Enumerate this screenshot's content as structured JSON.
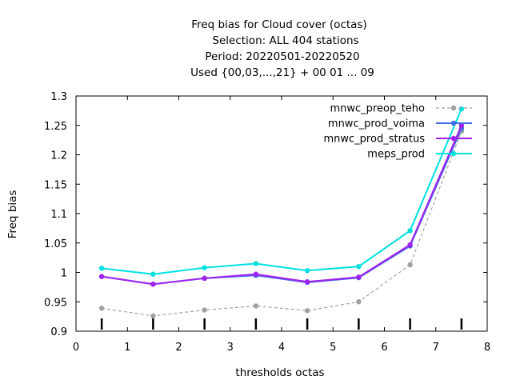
{
  "chart_data": {
    "type": "line",
    "title_lines": [
      "Freq bias  for Cloud cover (octas)",
      "Selection: ALL    404 stations",
      "Period: 20220501-20220520",
      "Used {00,03,...,21} + 00 01 ... 09"
    ],
    "xlabel": "thresholds octas",
    "ylabel": "Freq bias",
    "xlim": [
      0,
      8
    ],
    "ylim": [
      0.9,
      1.3
    ],
    "x_ticks": [
      "0",
      "1",
      "2",
      "3",
      "4",
      "5",
      "6",
      "7",
      "8"
    ],
    "y_ticks": [
      "0.9",
      "0.95",
      "1",
      "1.05",
      "1.1",
      "1.15",
      "1.2",
      "1.25",
      "1.3"
    ],
    "x": [
      0.5,
      1.5,
      2.5,
      3.5,
      4.5,
      5.5,
      6.5,
      7.5
    ],
    "series": [
      {
        "name": "mnwc_preop_teho",
        "color": "#a0a0a0",
        "dashed": true,
        "values": [
          0.939,
          0.926,
          0.936,
          0.943,
          0.935,
          0.95,
          1.013,
          1.24
        ]
      },
      {
        "name": "mnwc_prod_voima",
        "color": "#4169e1",
        "dashed": false,
        "values": [
          0.993,
          0.98,
          0.99,
          0.995,
          0.983,
          0.991,
          1.045,
          1.245
        ]
      },
      {
        "name": "mnwc_prod_stratus",
        "color": "#a020f0",
        "dashed": false,
        "values": [
          0.993,
          0.98,
          0.99,
          0.997,
          0.984,
          0.992,
          1.047,
          1.25
        ]
      },
      {
        "name": "meps_prod",
        "color": "#00e0e0",
        "dashed": false,
        "values": [
          1.007,
          0.997,
          1.008,
          1.015,
          1.003,
          1.01,
          1.071,
          1.278
        ]
      }
    ],
    "sample_markers_x": [
      0.5,
      1.5,
      2.5,
      3.5,
      4.5,
      5.5,
      6.5,
      7.5
    ],
    "grid": false,
    "legend_position": "top-right"
  }
}
